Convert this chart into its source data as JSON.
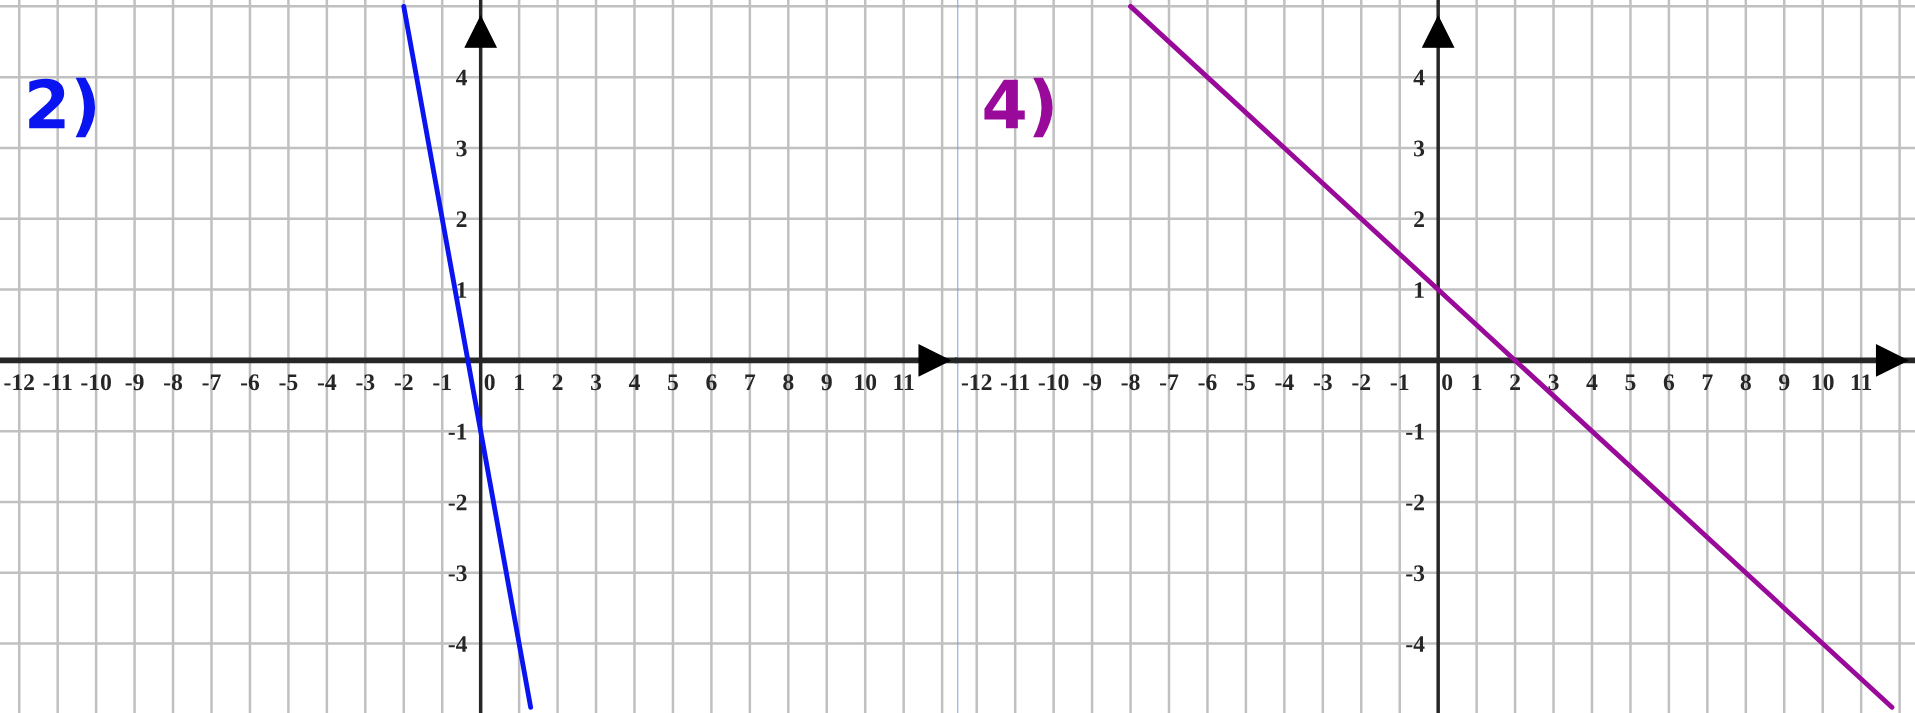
{
  "chart_data": [
    {
      "type": "line",
      "title": "2)",
      "x": [
        -2,
        1.3
      ],
      "series": [
        {
          "color": "#0a14f0",
          "values": [
            5,
            -4.9
          ]
        }
      ],
      "xlim": [
        -12.5,
        12.4
      ],
      "ylim": [
        -4.98,
        5.09
      ],
      "xticks": [
        -12,
        -11,
        -10,
        -9,
        -8,
        -7,
        -6,
        -5,
        -4,
        -3,
        -2,
        -1,
        0,
        1,
        2,
        3,
        4,
        5,
        6,
        7,
        8,
        9,
        10,
        11
      ],
      "yticks": [
        -4,
        -3,
        -2,
        -1,
        1,
        2,
        3,
        4
      ],
      "grid": true
    },
    {
      "type": "line",
      "title": "4)",
      "x": [
        -8,
        11.8
      ],
      "series": [
        {
          "color": "#9a0a9a",
          "values": [
            5,
            -4.9
          ]
        }
      ],
      "xlim": [
        -12.5,
        12.4
      ],
      "ylim": [
        -4.98,
        5.09
      ],
      "xticks": [
        -12,
        -11,
        -10,
        -9,
        -8,
        -7,
        -6,
        -5,
        -4,
        -3,
        -2,
        -1,
        0,
        1,
        2,
        3,
        4,
        5,
        6,
        7,
        8,
        9,
        10,
        11
      ],
      "yticks": [
        -4,
        -3,
        -2,
        -1,
        1,
        2,
        3,
        4
      ],
      "grid": true
    }
  ]
}
